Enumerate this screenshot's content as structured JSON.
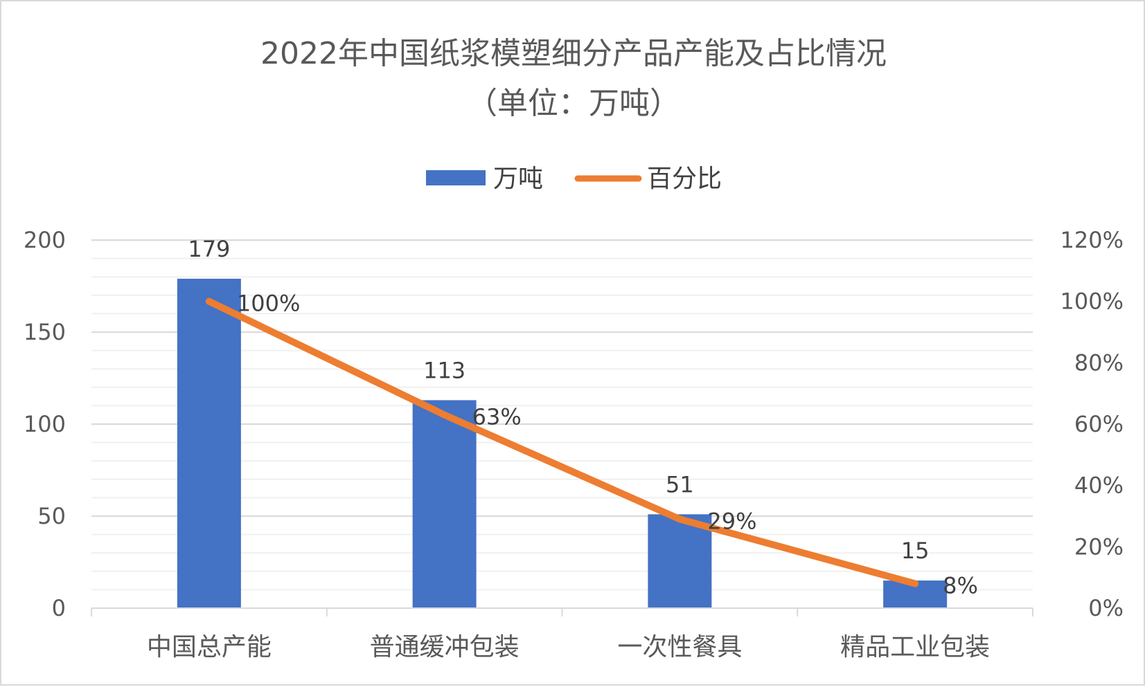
{
  "chart_data": {
    "type": "bar",
    "title": "2022年中国纸浆模塑细分产品产能及占比情况",
    "subtitle": "（单位：万吨）",
    "categories": [
      "中国总产能",
      "普通缓冲包装",
      "一次性餐具",
      "精品工业包装"
    ],
    "series": [
      {
        "name": "万吨",
        "type": "bar",
        "axis": "left",
        "color": "#4472c4",
        "values": [
          179,
          113,
          51,
          15
        ],
        "labels": [
          "179",
          "113",
          "51",
          "15"
        ]
      },
      {
        "name": "百分比",
        "type": "line",
        "axis": "right",
        "color": "#ed7d31",
        "values": [
          1.0,
          0.63,
          0.29,
          0.08
        ],
        "labels": [
          "100%",
          "63%",
          "29%",
          "8%"
        ]
      }
    ],
    "ylim": [
      0,
      200
    ],
    "yticks": [
      "0",
      "50",
      "100",
      "150",
      "200"
    ],
    "y2lim": [
      0,
      1.2
    ],
    "y2ticks": [
      "0%",
      "20%",
      "40%",
      "60%",
      "80%",
      "100%",
      "120%"
    ],
    "grid": true,
    "legend_position": "top"
  }
}
